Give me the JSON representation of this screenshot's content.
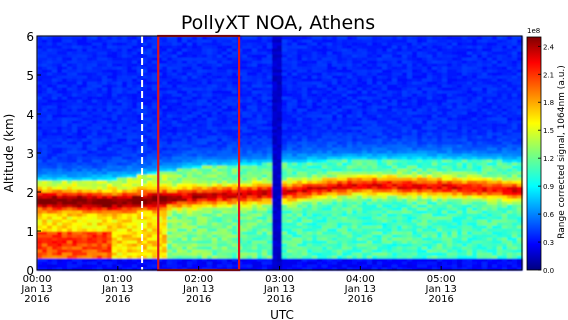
{
  "chart_data": {
    "type": "heatmap",
    "title": "PollyXT NOA, Athens",
    "xlabel": "UTC",
    "ylabel": "Altitude (km)",
    "x_range_utc": [
      "00:00",
      "06:00"
    ],
    "xlim_hours": [
      0,
      6
    ],
    "x_ticks": [
      {
        "hour": 0,
        "time": "00:00",
        "date": "Jan 13",
        "year": "2016"
      },
      {
        "hour": 1,
        "time": "01:00",
        "date": "Jan 13",
        "year": "2016"
      },
      {
        "hour": 2,
        "time": "02:00",
        "date": "Jan 13",
        "year": "2016"
      },
      {
        "hour": 3,
        "time": "03:00",
        "date": "Jan 13",
        "year": "2016"
      },
      {
        "hour": 4,
        "time": "04:00",
        "date": "Jan 13",
        "year": "2016"
      },
      {
        "hour": 5,
        "time": "05:00",
        "date": "Jan 13",
        "year": "2016"
      }
    ],
    "ylim": [
      0,
      6
    ],
    "y_ticks": [
      "0",
      "1",
      "2",
      "3",
      "4",
      "5",
      "6"
    ],
    "y_tick_values": [
      0,
      1,
      2,
      3,
      4,
      5,
      6
    ],
    "colorbar": {
      "label": "Range corrected signal, 1064nm (a.u.)",
      "exponent": "1e8",
      "range": [
        0.0,
        2.5
      ],
      "ticks": [
        "0.0",
        "0.3",
        "0.6",
        "0.9",
        "1.2",
        "1.5",
        "1.8",
        "2.1",
        "2.4"
      ],
      "tick_values": [
        0.0,
        0.3,
        0.6,
        0.9,
        1.2,
        1.5,
        1.8,
        2.1,
        2.4
      ],
      "colormap": "jet"
    },
    "layers": {
      "boundary_layer_top_km": [
        {
          "hour": 0.0,
          "km": 2.3
        },
        {
          "hour": 0.5,
          "km": 2.3
        },
        {
          "hour": 1.0,
          "km": 2.35
        },
        {
          "hour": 1.5,
          "km": 2.5
        },
        {
          "hour": 2.0,
          "km": 2.65
        },
        {
          "hour": 2.5,
          "km": 2.7
        },
        {
          "hour": 3.0,
          "km": 2.75
        },
        {
          "hour": 4.0,
          "km": 2.85
        },
        {
          "hour": 5.0,
          "km": 2.85
        },
        {
          "hour": 5.9,
          "km": 2.8
        }
      ],
      "elevated_layer_km": [
        {
          "hour": 0.0,
          "km": 1.8
        },
        {
          "hour": 1.0,
          "km": 1.75
        },
        {
          "hour": 2.0,
          "km": 1.9
        },
        {
          "hour": 3.0,
          "km": 2.0
        },
        {
          "hour": 4.0,
          "km": 2.2
        },
        {
          "hour": 5.0,
          "km": 2.15
        },
        {
          "hour": 5.9,
          "km": 2.05
        }
      ],
      "near_surface_low_signal_km": 0.3
    },
    "annotations": {
      "dashed_line_hour": 1.3,
      "highlight_box": {
        "start_hour": 1.5,
        "end_hour": 2.5,
        "bottom_km": 0,
        "top_km": 6,
        "color": "#e0141c"
      },
      "signal_gaps_hour": [
        2.92,
        2.98
      ]
    }
  }
}
